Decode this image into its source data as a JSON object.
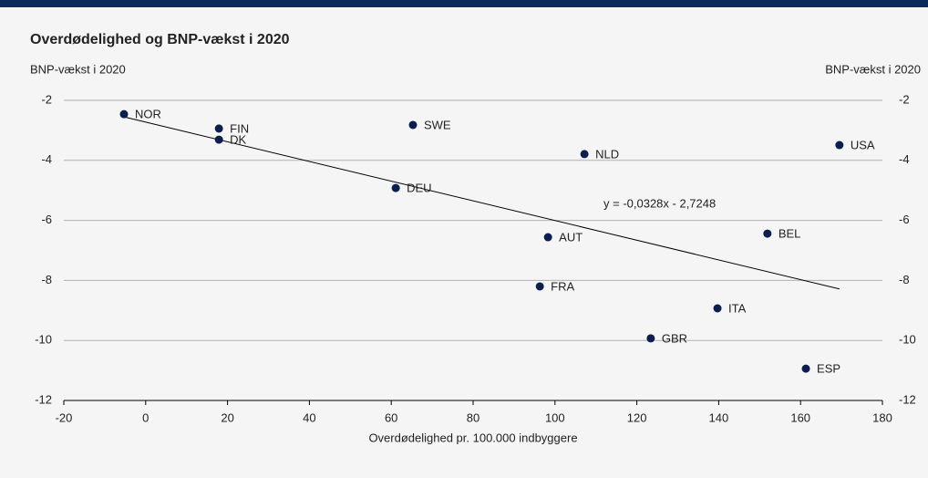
{
  "chart_data": {
    "type": "scatter",
    "title": "Overdødelighed og BNP-vækst i 2020",
    "ylabel": "BNP-vækst i 2020",
    "y2label": "BNP-vækst i 2020",
    "xlabel": "Overdødelighed pr. 100.000 indbyggere",
    "labels": [
      "NOR",
      "FIN",
      "DK",
      "SWE",
      "NLD",
      "USA",
      "DEU",
      "AUT",
      "BEL",
      "FRA",
      "ITA",
      "GBR",
      "ESP"
    ],
    "x": [
      -5.3,
      17.9,
      17.9,
      65.3,
      107.2,
      169.5,
      61.1,
      98.3,
      151.9,
      96.3,
      139.7,
      123.4,
      161.3
    ],
    "values": [
      -2.46,
      -2.94,
      -3.31,
      -2.82,
      -3.79,
      -3.49,
      -4.92,
      -6.56,
      -6.44,
      -8.2,
      -8.93,
      -9.93,
      -10.94
    ],
    "color": "#0b1f4f",
    "trendline": {
      "slope": -0.0328,
      "intercept": -2.7248,
      "label": "y = -0,0328x - 2,7248"
    },
    "xlim": [
      -20,
      180
    ],
    "xticks": [
      -20,
      0,
      20,
      40,
      60,
      80,
      100,
      120,
      140,
      160,
      180
    ],
    "ylim": [
      -12,
      -2
    ],
    "yticks": [
      -12,
      -10,
      -8,
      -6,
      -4,
      -2
    ],
    "y2lim": [
      -12,
      -2
    ],
    "y2ticks": [
      -12,
      -10,
      -8,
      -6,
      -4,
      -2
    ],
    "grid": true
  }
}
